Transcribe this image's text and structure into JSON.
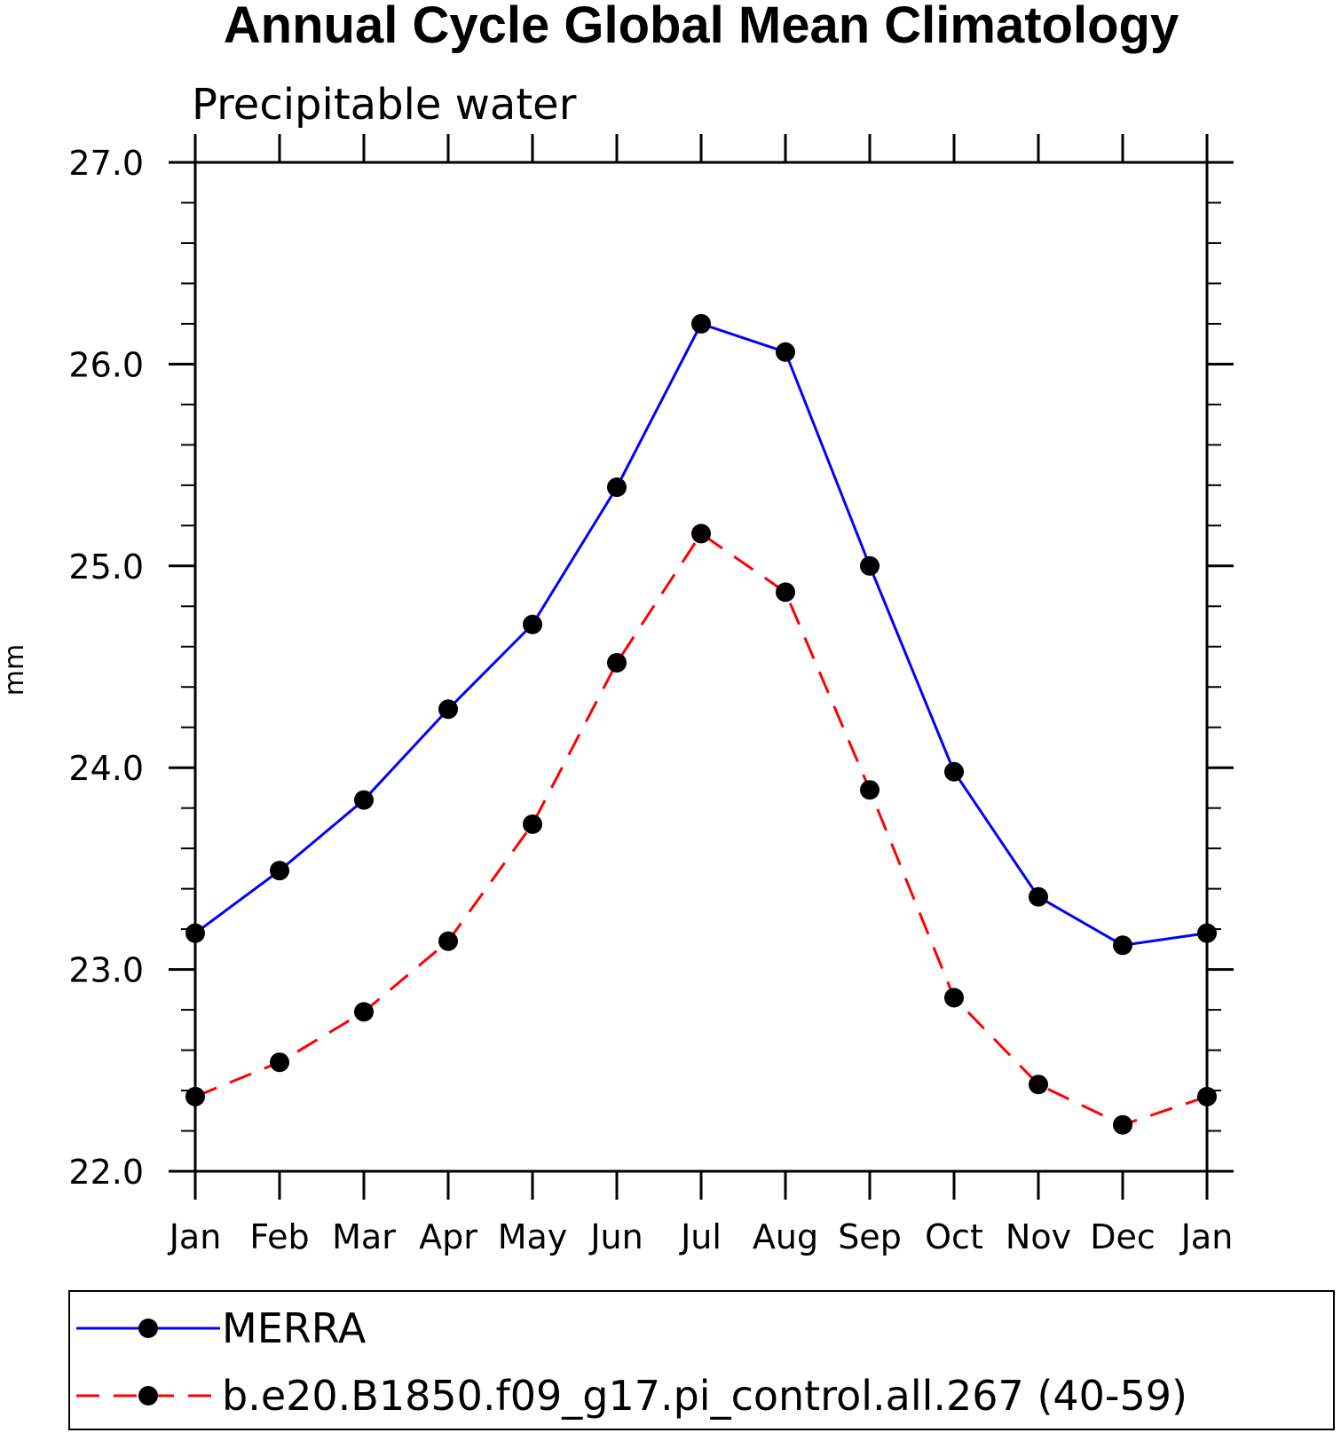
{
  "chart_data": {
    "type": "line",
    "title": "Annual Cycle Global Mean Climatology",
    "subtitle": "Precipitable water",
    "xlabel": "",
    "ylabel": "mm",
    "categories": [
      "Jan",
      "Feb",
      "Mar",
      "Apr",
      "May",
      "Jun",
      "Jul",
      "Aug",
      "Sep",
      "Oct",
      "Nov",
      "Dec",
      "Jan"
    ],
    "yticks": [
      "22.0",
      "23.0",
      "24.0",
      "25.0",
      "26.0",
      "27.0"
    ],
    "ylim": [
      22.0,
      27.0
    ],
    "grid": false,
    "legend_position": "bottom",
    "series": [
      {
        "name": "MERRA",
        "color": "#0000ff",
        "line_style": "solid",
        "marker": "filled-circle",
        "values": [
          23.18,
          23.49,
          23.84,
          24.29,
          24.71,
          25.39,
          26.2,
          26.06,
          25.0,
          23.98,
          23.36,
          23.12,
          23.18
        ]
      },
      {
        "name": "b.e20.B1850.f09_g17.pi_control.all.267 (40-59)",
        "color": "#ff0000",
        "line_style": "dashed",
        "marker": "filled-circle",
        "values": [
          22.37,
          22.54,
          22.79,
          23.14,
          23.72,
          24.52,
          25.16,
          24.87,
          23.89,
          22.86,
          22.43,
          22.23,
          22.37
        ]
      }
    ]
  }
}
